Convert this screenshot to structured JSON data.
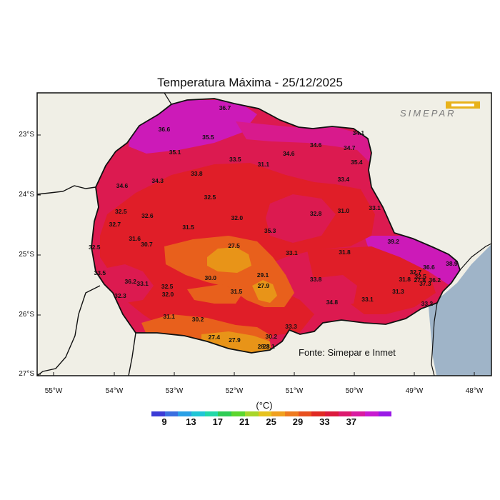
{
  "title": "Temperatura Máxima - 25/12/2025",
  "source_note": "Fonte: Simepar e Inmet",
  "logo_text": "SIMEPAR",
  "lat_labels": [
    "23°S",
    "24°S",
    "25°S",
    "26°S",
    "27°S"
  ],
  "lon_labels": [
    "55°W",
    "54°W",
    "53°W",
    "52°W",
    "51°W",
    "50°W",
    "49°W",
    "48°W"
  ],
  "colorbar": {
    "unit": "(°C)",
    "tick_labels": [
      "9",
      "13",
      "17",
      "21",
      "25",
      "29",
      "33",
      "37"
    ],
    "colors": [
      "#3b3bd6",
      "#3a6fe0",
      "#2aa0e6",
      "#20c6d6",
      "#22d8a8",
      "#2ecc55",
      "#5cd62e",
      "#a8d62a",
      "#e6c21e",
      "#f0a01e",
      "#ee7a1e",
      "#e8501e",
      "#e02a24",
      "#dc1a3c",
      "#dc1a6e",
      "#d81aa0",
      "#c81ad0",
      "#9a1ae6"
    ]
  },
  "colors": {
    "land": "#f0efe6",
    "ocean": "#9fb4c8",
    "t27": "#e89418",
    "t29": "#e8601c",
    "t31": "#e01e28",
    "t33": "#dc1a50",
    "t35": "#d81a8c",
    "t37": "#cc1ab8"
  },
  "stations": [
    {
      "value": "36.7",
      "lon": -52.15,
      "lat": -22.55
    },
    {
      "value": "36.6",
      "lon": -53.16,
      "lat": -22.9
    },
    {
      "value": "35.5",
      "lon": -52.43,
      "lat": -23.03
    },
    {
      "value": "35.1",
      "lon": -52.98,
      "lat": -23.29
    },
    {
      "value": "33.5",
      "lon": -51.98,
      "lat": -23.4
    },
    {
      "value": "31.1",
      "lon": -51.51,
      "lat": -23.49
    },
    {
      "value": "34.6",
      "lon": -51.09,
      "lat": -23.31
    },
    {
      "value": "34.6",
      "lon": -50.64,
      "lat": -23.17
    },
    {
      "value": "34.7",
      "lon": -50.08,
      "lat": -23.22
    },
    {
      "value": "34.1",
      "lon": -49.93,
      "lat": -22.97
    },
    {
      "value": "35.4",
      "lon": -49.96,
      "lat": -23.45
    },
    {
      "value": "33.4",
      "lon": -50.18,
      "lat": -23.74
    },
    {
      "value": "33.8",
      "lon": -52.62,
      "lat": -23.65
    },
    {
      "value": "34.3",
      "lon": -53.27,
      "lat": -23.76
    },
    {
      "value": "34.6",
      "lon": -53.86,
      "lat": -23.85
    },
    {
      "value": "32.5",
      "lon": -52.4,
      "lat": -24.04
    },
    {
      "value": "32.5",
      "lon": -53.88,
      "lat": -24.28
    },
    {
      "value": "32.6",
      "lon": -53.44,
      "lat": -24.35
    },
    {
      "value": "32.7",
      "lon": -53.98,
      "lat": -24.49
    },
    {
      "value": "32.0",
      "lon": -51.95,
      "lat": -24.39
    },
    {
      "value": "31.5",
      "lon": -52.76,
      "lat": -24.54
    },
    {
      "value": "32.8",
      "lon": -50.64,
      "lat": -24.31
    },
    {
      "value": "31.0",
      "lon": -50.18,
      "lat": -24.27
    },
    {
      "value": "33.1",
      "lon": -49.66,
      "lat": -24.22
    },
    {
      "value": "35.3",
      "lon": -51.4,
      "lat": -24.6
    },
    {
      "value": "31.6",
      "lon": -53.65,
      "lat": -24.73
    },
    {
      "value": "30.7",
      "lon": -53.45,
      "lat": -24.83
    },
    {
      "value": "32.5",
      "lon": -54.32,
      "lat": -24.87
    },
    {
      "value": "27.5",
      "lon": -52.0,
      "lat": -24.85
    },
    {
      "value": "33.1",
      "lon": -51.04,
      "lat": -24.97
    },
    {
      "value": "31.8",
      "lon": -50.16,
      "lat": -24.96
    },
    {
      "value": "39.2",
      "lon": -49.35,
      "lat": -24.78
    },
    {
      "value": "33.5",
      "lon": -54.23,
      "lat": -25.3
    },
    {
      "value": "36.2",
      "lon": -53.72,
      "lat": -25.45
    },
    {
      "value": "33.1",
      "lon": -53.52,
      "lat": -25.48
    },
    {
      "value": "32.5",
      "lon": -53.11,
      "lat": -25.53
    },
    {
      "value": "32.0",
      "lon": -53.1,
      "lat": -25.66
    },
    {
      "value": "32.3",
      "lon": -53.89,
      "lat": -25.69
    },
    {
      "value": "30.0",
      "lon": -52.39,
      "lat": -25.39
    },
    {
      "value": "29.1",
      "lon": -51.52,
      "lat": -25.34
    },
    {
      "value": "27.9",
      "lon": -51.51,
      "lat": -25.52
    },
    {
      "value": "31.5",
      "lon": -51.96,
      "lat": -25.61
    },
    {
      "value": "33.8",
      "lon": -50.64,
      "lat": -25.41
    },
    {
      "value": "34.8",
      "lon": -50.37,
      "lat": -25.79
    },
    {
      "value": "33.1",
      "lon": -49.78,
      "lat": -25.74
    },
    {
      "value": "31.3",
      "lon": -49.27,
      "lat": -25.61
    },
    {
      "value": "32.7",
      "lon": -48.98,
      "lat": -25.29
    },
    {
      "value": "32.5",
      "lon": -48.9,
      "lat": -25.36
    },
    {
      "value": "31.8",
      "lon": -49.16,
      "lat": -25.41
    },
    {
      "value": "27.8",
      "lon": -48.91,
      "lat": -25.42
    },
    {
      "value": "36.2",
      "lon": -48.66,
      "lat": -25.42
    },
    {
      "value": "37.3",
      "lon": -48.82,
      "lat": -25.48
    },
    {
      "value": "36.6",
      "lon": -48.76,
      "lat": -25.21
    },
    {
      "value": "38.9",
      "lon": -48.38,
      "lat": -25.15
    },
    {
      "value": "33.2",
      "lon": -48.79,
      "lat": -25.82
    },
    {
      "value": "31.1",
      "lon": -53.08,
      "lat": -26.03
    },
    {
      "value": "30.2",
      "lon": -52.6,
      "lat": -26.08
    },
    {
      "value": "33.3",
      "lon": -51.05,
      "lat": -26.2
    },
    {
      "value": "30.2",
      "lon": -51.38,
      "lat": -26.37
    },
    {
      "value": "27.4",
      "lon": -52.33,
      "lat": -26.38
    },
    {
      "value": "27.9",
      "lon": -51.99,
      "lat": -26.43
    },
    {
      "value": "28.3",
      "lon": -51.51,
      "lat": -26.53
    },
    {
      "value": "28.1",
      "lon": -51.42,
      "lat": -26.53
    }
  ]
}
